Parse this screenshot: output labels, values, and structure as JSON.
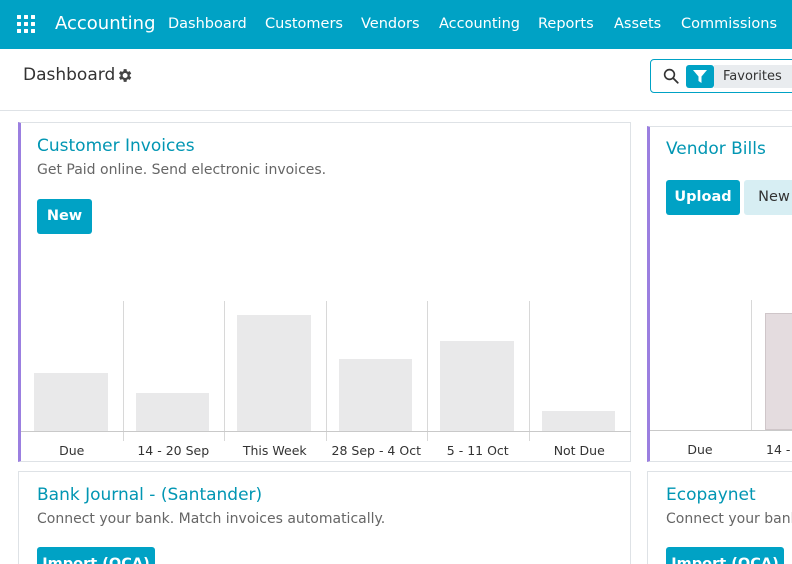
{
  "topbar": {
    "brand": "Accounting",
    "menu": [
      "Dashboard",
      "Customers",
      "Vendors",
      "Accounting",
      "Reports",
      "Assets",
      "Commissions"
    ]
  },
  "control_panel": {
    "title": "Dashboard",
    "search_placeholder": "",
    "favorites_label": "Favorites"
  },
  "cards": {
    "customer_invoices": {
      "title": "Customer Invoices",
      "subtitle": "Get Paid online. Send electronic invoices.",
      "new_label": "New",
      "chart_data": {
        "type": "bar",
        "categories": [
          "Due",
          "14 - 20 Sep",
          "This Week",
          "28 Sep - 4 Oct",
          "5 - 11 Oct",
          "Not Due"
        ],
        "values": [
          0.5,
          0.33,
          1.0,
          0.62,
          0.78,
          0.17
        ]
      }
    },
    "vendor_bills": {
      "title": "Vendor Bills",
      "upload_label": "Upload",
      "new_label": "New",
      "chart_labels": [
        "Due",
        "14 -"
      ]
    },
    "bank_journal": {
      "title": "Bank Journal - (Santander)",
      "subtitle": "Connect your bank. Match invoices automatically.",
      "import_label": "Import (OCA)"
    },
    "ecopaynet": {
      "title": "Ecopaynet",
      "subtitle": "Connect your bank",
      "import_label": "Import (OCA)"
    }
  },
  "colors": {
    "primary": "#00a2c5",
    "accent": "#9b7fe0",
    "title": "#0196b3"
  }
}
